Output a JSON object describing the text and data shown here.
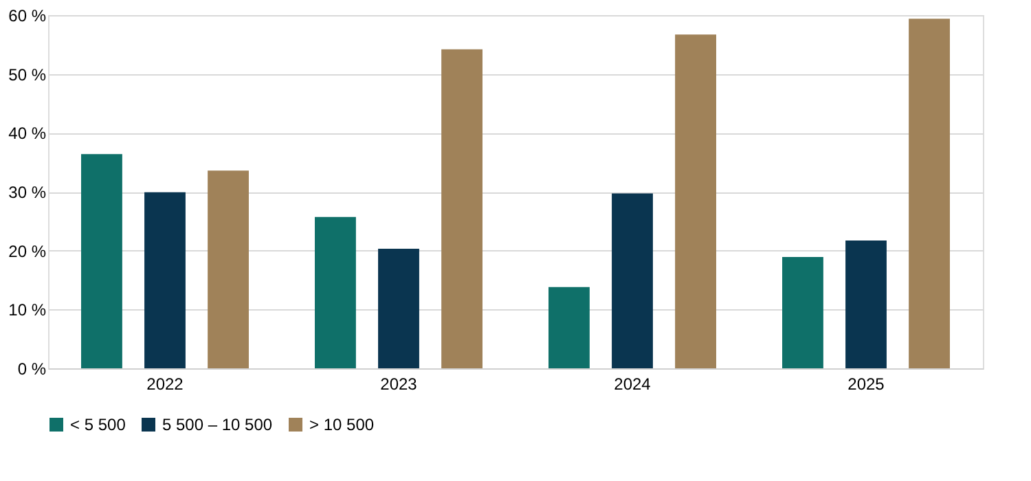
{
  "chart_data": {
    "type": "bar",
    "categories": [
      "2022",
      "2023",
      "2024",
      "2025"
    ],
    "series": [
      {
        "name": "< 5 500",
        "color": "#0f7069",
        "values": [
          36.4,
          25.7,
          13.8,
          18.9
        ]
      },
      {
        "name": "5 500 – 10 500",
        "color": "#0a3550",
        "values": [
          29.9,
          20.3,
          29.7,
          21.7
        ]
      },
      {
        "name": "> 10 500",
        "color": "#a08259",
        "values": [
          33.6,
          54.2,
          56.7,
          59.4
        ]
      }
    ],
    "ylim": [
      0,
      60
    ],
    "yticks": [
      {
        "value": 0,
        "label": "0 %"
      },
      {
        "value": 10,
        "label": "10 %"
      },
      {
        "value": 20,
        "label": "20 %"
      },
      {
        "value": 30,
        "label": "30 %"
      },
      {
        "value": 40,
        "label": "40 %"
      },
      {
        "value": 50,
        "label": "50 %"
      },
      {
        "value": 60,
        "label": "60 %"
      }
    ],
    "grid": "y",
    "legend": "bottom"
  }
}
